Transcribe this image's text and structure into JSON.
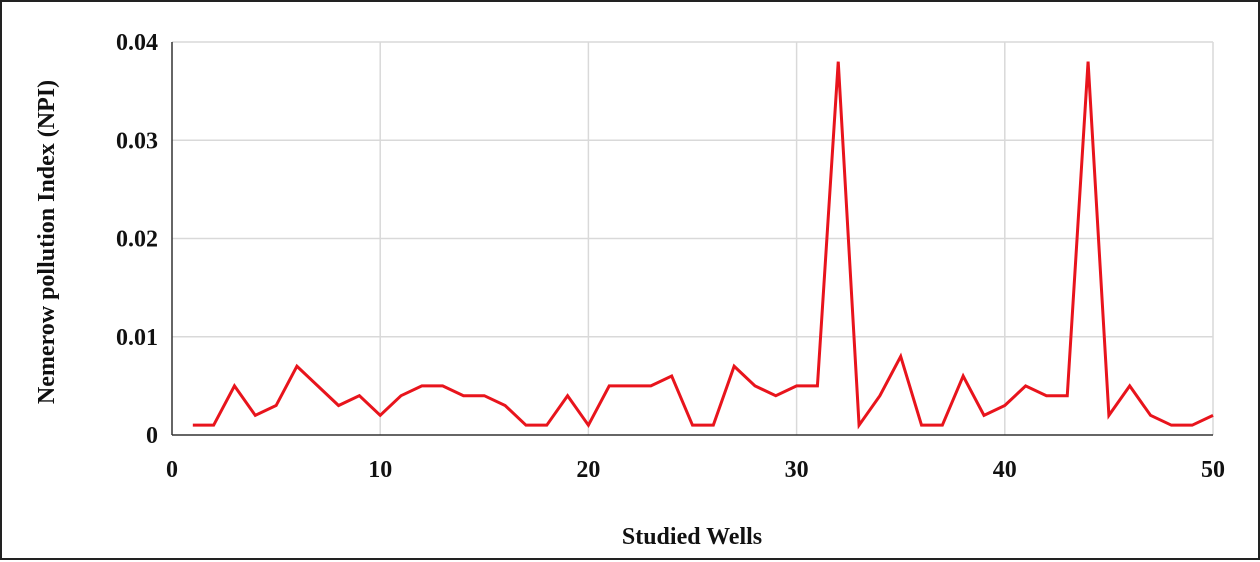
{
  "chart_data": {
    "type": "line",
    "title": "",
    "xlabel": "Studied Wells",
    "ylabel": "Nemerow pollution Index (NPI)",
    "xlim": [
      0,
      50
    ],
    "ylim": [
      0,
      0.04
    ],
    "xticks": [
      0,
      10,
      20,
      30,
      40,
      50
    ],
    "yticks": [
      0,
      0.01,
      0.02,
      0.03,
      0.04
    ],
    "xtick_labels": [
      "0",
      "10",
      "20",
      "30",
      "40",
      "50"
    ],
    "ytick_labels": [
      "0",
      "0.01",
      "0.02",
      "0.03",
      "0.04"
    ],
    "grid": true,
    "legend": "none",
    "series": [
      {
        "color": "#e8141c",
        "x": [
          1,
          2,
          3,
          4,
          5,
          6,
          7,
          8,
          9,
          10,
          11,
          12,
          13,
          14,
          15,
          16,
          17,
          18,
          19,
          20,
          21,
          22,
          23,
          24,
          25,
          26,
          27,
          28,
          29,
          30,
          31,
          32,
          33,
          34,
          35,
          36,
          37,
          38,
          39,
          40,
          41,
          42,
          43,
          44,
          45,
          46,
          47,
          48,
          49,
          50
        ],
        "y": [
          0.001,
          0.001,
          0.005,
          0.002,
          0.003,
          0.007,
          0.005,
          0.003,
          0.004,
          0.002,
          0.004,
          0.005,
          0.005,
          0.004,
          0.004,
          0.003,
          0.001,
          0.001,
          0.004,
          0.001,
          0.005,
          0.005,
          0.005,
          0.006,
          0.001,
          0.001,
          0.007,
          0.005,
          0.004,
          0.005,
          0.005,
          0.038,
          0.001,
          0.004,
          0.008,
          0.001,
          0.001,
          0.006,
          0.002,
          0.003,
          0.005,
          0.004,
          0.004,
          0.038,
          0.002,
          0.005,
          0.002,
          0.001,
          0.001,
          0.002
        ]
      }
    ]
  }
}
